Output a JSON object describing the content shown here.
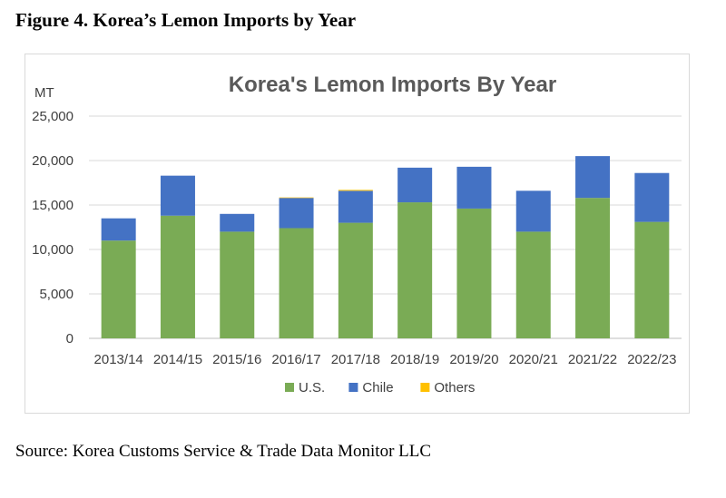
{
  "figure_title": "Figure 4. Korea’s Lemon Imports by Year",
  "source": "Source: Korea Customs Service & Trade Data Monitor LLC",
  "chart_data": {
    "type": "bar",
    "stacked": true,
    "title": "Korea's Lemon Imports By Year",
    "ylabel": "MT",
    "xlabel": "",
    "ylim": [
      0,
      25000
    ],
    "yticks": [
      0,
      5000,
      10000,
      15000,
      20000,
      25000
    ],
    "ytick_labels": [
      "0",
      "5,000",
      "10,000",
      "15,000",
      "20,000",
      "25,000"
    ],
    "grid": true,
    "legend_position": "bottom",
    "categories": [
      "2013/14",
      "2014/15",
      "2015/16",
      "2016/17",
      "2017/18",
      "2018/19",
      "2019/20",
      "2020/21",
      "2021/22",
      "2022/23"
    ],
    "series": [
      {
        "name": "U.S.",
        "color": "#7aab55",
        "values": [
          11000,
          13800,
          12000,
          12400,
          13000,
          15300,
          14600,
          12000,
          15800,
          13100
        ]
      },
      {
        "name": "Chile",
        "color": "#4472c4",
        "values": [
          2500,
          4500,
          2000,
          3400,
          3600,
          3900,
          4700,
          4600,
          4700,
          5500
        ]
      },
      {
        "name": "Others",
        "color": "#ffc000",
        "values": [
          0,
          0,
          0,
          50,
          100,
          0,
          0,
          0,
          0,
          0
        ]
      }
    ]
  }
}
